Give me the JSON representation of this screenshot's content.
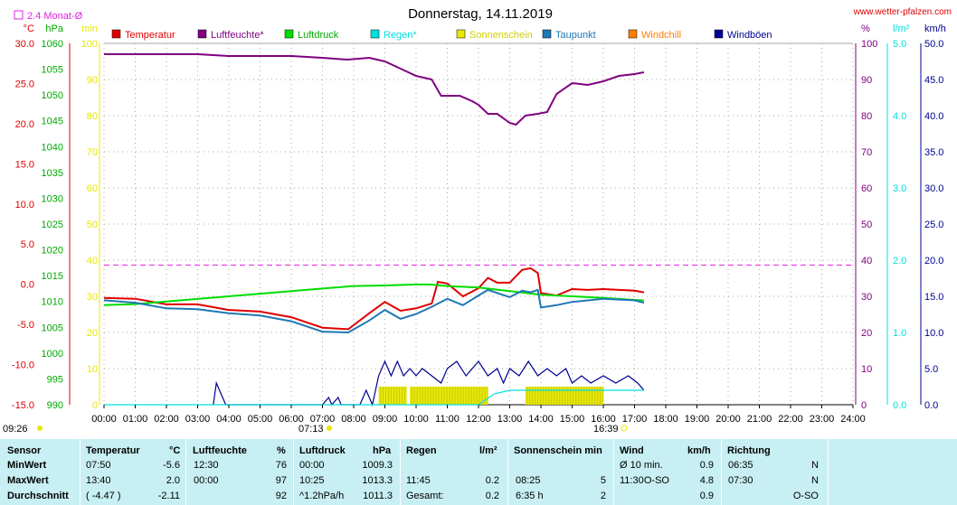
{
  "header": {
    "title": "Donnerstag, 14.11.2019",
    "site": "www.wetter-pfalzen.com",
    "monthly_avg_label": "2.4 Monat-Ø",
    "sunrise": "07:13",
    "sunset": "16:39",
    "start_time": "09:26"
  },
  "colors": {
    "temperatur": "#e00000",
    "luftfeuchte": "#800080",
    "luftdruck": "#00dd00",
    "regen": "#00e0e0",
    "sonnenschein": "#e8e800",
    "taupunkt": "#1f78b4",
    "windchill": "#ff8000",
    "windboeen": "#000090",
    "avg_line": "#e020e0",
    "grid": "#aaaaaa",
    "stats_bg": "#c8eff3"
  },
  "chart_data": {
    "type": "line",
    "title": "Donnerstag, 14.11.2019",
    "legend": [
      "Temperatur",
      "Luftfeuchte*",
      "Luftdruck",
      "Regen*",
      "Sonnenschein",
      "Taupunkt",
      "Windchill",
      "Windböen"
    ],
    "x_ticks": [
      "00:00",
      "01:00",
      "02:00",
      "03:00",
      "04:00",
      "05:00",
      "06:00",
      "07:00",
      "08:00",
      "09:00",
      "10:00",
      "11:00",
      "12:00",
      "13:00",
      "14:00",
      "15:00",
      "16:00",
      "17:00",
      "18:00",
      "19:00",
      "20:00",
      "21:00",
      "22:00",
      "23:00",
      "24:00"
    ],
    "xlim": [
      0,
      24
    ],
    "axes": {
      "temp": {
        "unit": "°C",
        "range": [
          -15,
          30
        ],
        "ticks": [
          "30.0",
          "25.0",
          "20.0",
          "15.0",
          "10.0",
          "5.0",
          "0.0",
          "-5.0",
          "-10.0",
          "-15.0"
        ]
      },
      "pressure": {
        "unit": "hPa",
        "range": [
          990,
          1060
        ],
        "ticks": [
          "1060",
          "1055",
          "1050",
          "1045",
          "1040",
          "1035",
          "1030",
          "1025",
          "1020",
          "1015",
          "1010",
          "1005",
          "1000",
          "995",
          "990"
        ]
      },
      "min": {
        "unit": "min",
        "range": [
          0,
          100
        ],
        "ticks": [
          "100",
          "90",
          "80",
          "70",
          "60",
          "50",
          "40",
          "30",
          "20",
          "10",
          "0"
        ]
      },
      "humidity": {
        "unit": "%",
        "range": [
          0,
          100
        ],
        "ticks": [
          "100",
          "90",
          "80",
          "70",
          "60",
          "50",
          "40",
          "30",
          "20",
          "10",
          "0"
        ]
      },
      "rain": {
        "unit": "l/m²",
        "range": [
          0,
          5
        ],
        "ticks": [
          "5.0",
          "4.0",
          "3.0",
          "2.0",
          "1.0",
          "0.0"
        ]
      },
      "wind": {
        "unit": "km/h",
        "range": [
          0,
          50
        ],
        "ticks": [
          "50.0",
          "45.0",
          "40.0",
          "35.0",
          "30.0",
          "25.0",
          "20.0",
          "15.0",
          "10.0",
          "5.0",
          "0.0"
        ]
      }
    },
    "monthly_avg_temp": 2.4,
    "series": [
      {
        "name": "Temperatur",
        "axis": "temp",
        "points": [
          [
            0,
            -1.7
          ],
          [
            1,
            -1.8
          ],
          [
            2,
            -2.5
          ],
          [
            3,
            -2.5
          ],
          [
            4,
            -3.2
          ],
          [
            5,
            -3.4
          ],
          [
            6,
            -4.1
          ],
          [
            7,
            -5.4
          ],
          [
            7.83,
            -5.6
          ],
          [
            8.5,
            -3.6
          ],
          [
            9,
            -2.2
          ],
          [
            9.5,
            -3.3
          ],
          [
            10,
            -3.0
          ],
          [
            10.5,
            -2.4
          ],
          [
            10.7,
            0.3
          ],
          [
            11,
            0.1
          ],
          [
            11.5,
            -1.5
          ],
          [
            12,
            -0.5
          ],
          [
            12.3,
            0.8
          ],
          [
            12.6,
            0.2
          ],
          [
            13,
            0.2
          ],
          [
            13.4,
            1.8
          ],
          [
            13.67,
            2.0
          ],
          [
            13.9,
            1.4
          ],
          [
            14,
            -1.1
          ],
          [
            14.5,
            -1.4
          ],
          [
            15,
            -0.6
          ],
          [
            15.5,
            -0.7
          ],
          [
            16,
            -0.6
          ],
          [
            16.5,
            -0.7
          ],
          [
            17,
            -0.8
          ],
          [
            17.3,
            -1.0
          ]
        ]
      },
      {
        "name": "Luftfeuchte*",
        "axis": "humidity",
        "points": [
          [
            0,
            97
          ],
          [
            1,
            97
          ],
          [
            2,
            97
          ],
          [
            3,
            97
          ],
          [
            4,
            96.5
          ],
          [
            5,
            96.5
          ],
          [
            6,
            96.5
          ],
          [
            7,
            96
          ],
          [
            7.8,
            95.5
          ],
          [
            8.5,
            96
          ],
          [
            9,
            95
          ],
          [
            9.5,
            93
          ],
          [
            10,
            91
          ],
          [
            10.5,
            90
          ],
          [
            10.8,
            85.5
          ],
          [
            11.4,
            85.5
          ],
          [
            11.8,
            84
          ],
          [
            12,
            83
          ],
          [
            12.3,
            80.5
          ],
          [
            12.6,
            80.5
          ],
          [
            13,
            78
          ],
          [
            13.2,
            77.5
          ],
          [
            13.5,
            80
          ],
          [
            13.9,
            80.5
          ],
          [
            14.2,
            81
          ],
          [
            14.5,
            86
          ],
          [
            15,
            89
          ],
          [
            15.5,
            88.5
          ],
          [
            16,
            89.5
          ],
          [
            16.5,
            91
          ],
          [
            17,
            91.5
          ],
          [
            17.3,
            92
          ]
        ]
      },
      {
        "name": "Luftdruck",
        "axis": "pressure",
        "points": [
          [
            0,
            1009.3
          ],
          [
            1,
            1009.5
          ],
          [
            2,
            1010
          ],
          [
            3,
            1010.5
          ],
          [
            4,
            1011
          ],
          [
            5,
            1011.5
          ],
          [
            6,
            1012
          ],
          [
            7,
            1012.5
          ],
          [
            8,
            1013
          ],
          [
            9,
            1013.1
          ],
          [
            10,
            1013.3
          ],
          [
            10.42,
            1013.3
          ],
          [
            11,
            1013
          ],
          [
            12,
            1012.7
          ],
          [
            13,
            1012
          ],
          [
            14,
            1011.3
          ],
          [
            15,
            1011
          ],
          [
            16,
            1010.7
          ],
          [
            17,
            1010.3
          ],
          [
            17.3,
            1010.2
          ]
        ]
      },
      {
        "name": "Taupunkt",
        "axis": "temp",
        "points": [
          [
            0,
            -2.0
          ],
          [
            1,
            -2.3
          ],
          [
            2,
            -3.0
          ],
          [
            3,
            -3.1
          ],
          [
            4,
            -3.6
          ],
          [
            5,
            -3.9
          ],
          [
            6,
            -4.6
          ],
          [
            7,
            -5.9
          ],
          [
            7.83,
            -6.0
          ],
          [
            8.5,
            -4.5
          ],
          [
            9,
            -3.2
          ],
          [
            9.5,
            -4.3
          ],
          [
            10,
            -3.7
          ],
          [
            10.5,
            -2.8
          ],
          [
            11,
            -1.8
          ],
          [
            11.5,
            -2.6
          ],
          [
            12,
            -1.4
          ],
          [
            12.3,
            -0.7
          ],
          [
            13,
            -1.6
          ],
          [
            13.4,
            -0.8
          ],
          [
            13.67,
            -1.0
          ],
          [
            13.9,
            -0.7
          ],
          [
            14,
            -2.9
          ],
          [
            14.5,
            -2.6
          ],
          [
            15,
            -2.2
          ],
          [
            16,
            -1.8
          ],
          [
            16.5,
            -1.9
          ],
          [
            17,
            -2.0
          ],
          [
            17.3,
            -2.3
          ]
        ]
      },
      {
        "name": "Windböen",
        "axis": "wind",
        "points": [
          [
            3.5,
            0
          ],
          [
            3.6,
            3
          ],
          [
            3.8,
            1
          ],
          [
            3.9,
            0
          ],
          [
            7,
            0
          ],
          [
            7.2,
            1
          ],
          [
            7.3,
            0
          ],
          [
            7.5,
            1
          ],
          [
            7.6,
            0
          ],
          [
            8.2,
            0
          ],
          [
            8.4,
            2
          ],
          [
            8.6,
            0
          ],
          [
            8.8,
            4
          ],
          [
            9,
            6
          ],
          [
            9.2,
            4
          ],
          [
            9.4,
            6
          ],
          [
            9.6,
            4
          ],
          [
            9.8,
            5
          ],
          [
            10,
            4
          ],
          [
            10.2,
            5
          ],
          [
            10.5,
            4
          ],
          [
            10.8,
            3
          ],
          [
            11,
            5
          ],
          [
            11.3,
            6
          ],
          [
            11.6,
            4
          ],
          [
            12,
            6
          ],
          [
            12.3,
            4
          ],
          [
            12.6,
            5
          ],
          [
            12.8,
            3
          ],
          [
            13,
            5
          ],
          [
            13.3,
            4
          ],
          [
            13.6,
            6
          ],
          [
            13.9,
            4
          ],
          [
            14.2,
            5
          ],
          [
            14.5,
            4
          ],
          [
            14.8,
            5
          ],
          [
            15,
            3
          ],
          [
            15.3,
            4
          ],
          [
            15.6,
            3
          ],
          [
            16,
            4
          ],
          [
            16.4,
            3
          ],
          [
            16.8,
            4
          ],
          [
            17.1,
            3
          ],
          [
            17.3,
            2
          ]
        ]
      },
      {
        "name": "Regen*",
        "axis": "rain",
        "points": [
          [
            0,
            0
          ],
          [
            12,
            0
          ],
          [
            12.5,
            0.15
          ],
          [
            13,
            0.2
          ],
          [
            17.3,
            0.2
          ]
        ]
      }
    ],
    "sunshine_bars": [
      [
        8.8,
        9.7
      ],
      [
        9.8,
        12.3
      ],
      [
        13.5,
        16.0
      ]
    ]
  },
  "stats": {
    "headers": {
      "sensor": "Sensor",
      "temperatur": "Temperatur",
      "temperatur_unit": "°C",
      "luftfeuchte": "Luftfeuchte",
      "luftfeuchte_unit": "%",
      "luftdruck": "Luftdruck",
      "luftdruck_unit": "hPa",
      "regen": "Regen",
      "regen_unit": "l/m²",
      "sonnenschein": "Sonnenschein min",
      "wind": "Wind",
      "wind_unit": "km/h",
      "richtung": "Richtung"
    },
    "rows": [
      {
        "label": "MinWert",
        "temp_time": "07:50",
        "temp_val": "-5.6",
        "hum_time": "12:30",
        "hum_val": "76",
        "press_time": "00:00",
        "press_val": "1009.3",
        "rain_time": "",
        "rain_val": "",
        "sun_time": "",
        "sun_val": "",
        "wind_time": "Ø 10 min.",
        "wind_dir": "",
        "wind_val": "0.9",
        "dir_time": "06:35",
        "dir_val": "N"
      },
      {
        "label": "MaxWert",
        "temp_time": "13:40",
        "temp_val": "2.0",
        "hum_time": "00:00",
        "hum_val": "97",
        "press_time": "10:25",
        "press_val": "1013.3",
        "rain_time": "11:45",
        "rain_val": "0.2",
        "sun_time": "08:25",
        "sun_val": "5",
        "wind_time": "11:30",
        "wind_dir": "O-SO",
        "wind_val": "4.8",
        "dir_time": "07:30",
        "dir_val": "N"
      },
      {
        "label": "Durchschnitt",
        "temp_time": "( -4.47 )",
        "temp_val": "-2.11",
        "hum_time": "",
        "hum_val": "92",
        "press_time": "^1.2hPa/h",
        "press_val": "1011.3",
        "rain_time": "Gesamt:",
        "rain_val": "0.2",
        "sun_time": "6:35 h",
        "sun_val": "2",
        "wind_time": "",
        "wind_dir": "",
        "wind_val": "0.9",
        "dir_time": "",
        "dir_val": "O-SO"
      }
    ]
  }
}
